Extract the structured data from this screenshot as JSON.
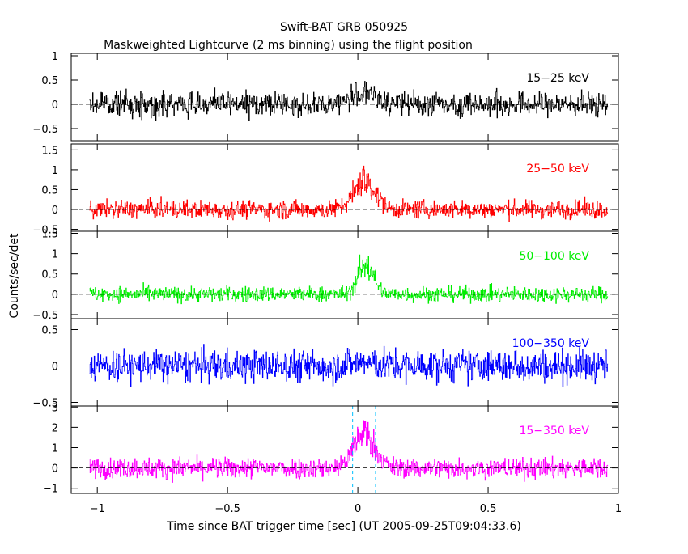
{
  "title": "Swift-BAT GRB 050925",
  "subtitle": "Maskweighted Lightcurve (2 ms binning) using the flight position",
  "ylabel": "Counts/sec/det",
  "xlabel": "Time since BAT trigger time [sec] (UT 2005-09-25T09:04:33.6)",
  "chart_data": {
    "type": "line",
    "title": "Swift-BAT GRB 050925",
    "subtitle": "Maskweighted Lightcurve (2 ms binning) using the flight position",
    "xlabel": "Time since BAT trigger time [sec] (UT 2005-09-25T09:04:33.6)",
    "ylabel": "Counts/sec/det",
    "xlim": [
      -1.1,
      1.0
    ],
    "xticks": [
      -1,
      -0.5,
      0,
      0.5,
      1
    ],
    "xtick_labels": [
      "−1",
      "−0.5",
      "0",
      "0.5",
      "1"
    ],
    "x_start": -1.03,
    "x_end": 0.96,
    "bin_width_s": 0.002,
    "vertical_markers_x": [
      -0.02,
      0.068
    ],
    "panels": [
      {
        "name": "15−25 keV",
        "color": "#000000",
        "ylim": [
          -0.75,
          1.05
        ],
        "yticks": [
          -0.5,
          0,
          0.5,
          1
        ],
        "ytick_labels": [
          "−0.5",
          "0",
          "0.5",
          "1"
        ],
        "baseline": 0.0,
        "noise_amplitude": 0.22,
        "peak": {
          "center": 0.02,
          "width": 0.05,
          "height": 0.22
        }
      },
      {
        "name": "25−50 keV",
        "color": "#ff0000",
        "ylim": [
          -0.55,
          1.65
        ],
        "yticks": [
          -0.5,
          0,
          0.5,
          1,
          1.5
        ],
        "ytick_labels": [
          "−0.5",
          "0",
          "0.5",
          "1",
          "1.5"
        ],
        "baseline": 0.0,
        "noise_amplitude": 0.2,
        "peak": {
          "center": 0.025,
          "width": 0.04,
          "height": 0.75
        }
      },
      {
        "name": "50−100 keV",
        "color": "#00ee00",
        "ylim": [
          -0.6,
          1.55
        ],
        "yticks": [
          -0.5,
          0,
          0.5,
          1,
          1.5
        ],
        "ytick_labels": [
          "−0.5",
          "0",
          "0.5",
          "1",
          "1.5"
        ],
        "baseline": 0.0,
        "noise_amplitude": 0.17,
        "peak": {
          "center": 0.03,
          "width": 0.03,
          "height": 0.75
        }
      },
      {
        "name": "100−350 keV",
        "color": "#0000ff",
        "ylim": [
          -0.55,
          0.65
        ],
        "yticks": [
          -0.5,
          0,
          0.5
        ],
        "ytick_labels": [
          "−0.5",
          "0",
          "0.5"
        ],
        "baseline": 0.0,
        "noise_amplitude": 0.2,
        "peak": {
          "center": 0.02,
          "width": 0.05,
          "height": 0.05
        }
      },
      {
        "name": "15−350 keV",
        "color": "#ff00ff",
        "ylim": [
          -1.25,
          3.05
        ],
        "yticks": [
          -1,
          0,
          1,
          2,
          3
        ],
        "ytick_labels": [
          "−1",
          "0",
          "1",
          "2",
          "3"
        ],
        "baseline": 0.0,
        "noise_amplitude": 0.45,
        "peak": {
          "center": 0.025,
          "width": 0.04,
          "height": 1.75
        }
      }
    ]
  }
}
